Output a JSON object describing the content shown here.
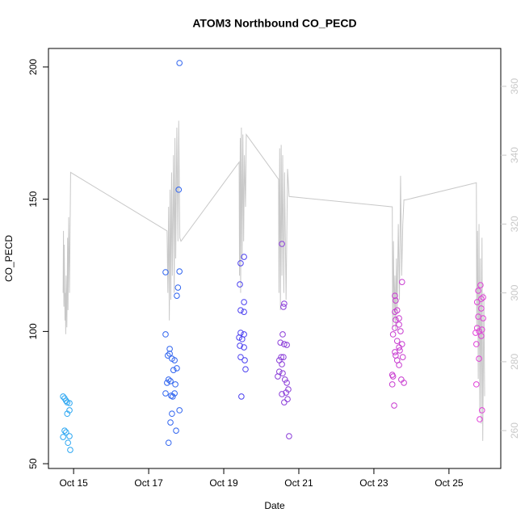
{
  "chart_data": {
    "type": "scatter",
    "title": "ATOM3 Northbound CO_PECD",
    "xlabel": "Date",
    "ylabel": "CO_PECD",
    "xlim": [
      14.33,
      26.38
    ],
    "xticks": [
      {
        "value": 15,
        "label": "Oct 15"
      },
      {
        "value": 17,
        "label": "Oct 17"
      },
      {
        "value": 19,
        "label": "Oct 19"
      },
      {
        "value": 21,
        "label": "Oct 21"
      },
      {
        "value": 23,
        "label": "Oct 23"
      },
      {
        "value": 25,
        "label": "Oct 25"
      }
    ],
    "ylim": [
      48.2,
      207.0
    ],
    "yticks": [
      50,
      100,
      150,
      200
    ],
    "y2lim": [
      249,
      371
    ],
    "y2ticks": [
      260,
      280,
      300,
      320,
      340,
      360
    ],
    "series": [
      {
        "color": "#2aa6f2",
        "x": [
          14.72,
          14.76,
          14.8,
          14.83,
          14.89,
          14.89,
          14.83,
          14.76,
          14.8,
          14.89,
          14.72,
          14.85,
          14.91
        ],
        "values": [
          75.4,
          74.7,
          73.8,
          73.2,
          72.9,
          70.2,
          68.9,
          62.5,
          61.9,
          60.4,
          60.1,
          57.9,
          55.2
        ]
      },
      {
        "color": "#2f64ef",
        "x": [
          17.82,
          17.8,
          17.45,
          17.82,
          17.78,
          17.75,
          17.45,
          17.56,
          17.51,
          17.56,
          17.62,
          17.69,
          17.75,
          17.66,
          17.53,
          17.49,
          17.58,
          17.71,
          17.45,
          17.6,
          17.64,
          17.69,
          17.82,
          17.62,
          17.58,
          17.73,
          17.53
        ],
        "values": [
          201.5,
          153.6,
          122.4,
          122.7,
          116.6,
          113.5,
          98.9,
          93.4,
          90.9,
          91.6,
          89.7,
          89.1,
          86.1,
          85.4,
          81.8,
          80.6,
          81.2,
          80.0,
          76.6,
          75.7,
          75.4,
          76.6,
          70.2,
          68.9,
          65.6,
          62.5,
          57.9
        ]
      },
      {
        "color": "#4a3ff0",
        "x": [
          19.45,
          19.54,
          19.43,
          19.54,
          19.45,
          19.54,
          19.45,
          19.54,
          19.41,
          19.49,
          19.43,
          19.54,
          19.45,
          19.56,
          19.58,
          19.47
        ],
        "values": [
          125.8,
          128.2,
          117.8,
          111.1,
          108.0,
          107.4,
          99.5,
          98.9,
          97.7,
          97.1,
          94.6,
          94.0,
          90.3,
          89.1,
          85.7,
          75.4
        ]
      },
      {
        "color": "#8a3cd8",
        "x": [
          20.55,
          20.61,
          20.59,
          20.57,
          20.51,
          20.61,
          20.68,
          20.53,
          20.59,
          20.48,
          20.55,
          20.48,
          20.57,
          20.44,
          20.63,
          20.68,
          20.72,
          20.66,
          20.55,
          20.7,
          20.61,
          20.74
        ],
        "values": [
          133.1,
          110.5,
          109.3,
          98.9,
          95.8,
          95.2,
          94.9,
          90.3,
          90.3,
          89.1,
          87.6,
          84.8,
          84.2,
          83.0,
          81.8,
          80.6,
          78.1,
          76.9,
          76.3,
          74.4,
          73.2,
          60.4
        ]
      },
      {
        "color": "#c83cd0",
        "x": [
          23.75,
          23.56,
          23.58,
          23.62,
          23.56,
          23.67,
          23.58,
          23.67,
          23.56,
          23.71,
          23.51,
          23.62,
          23.75,
          23.67,
          23.56,
          23.69,
          23.58,
          23.77,
          23.62,
          23.67,
          23.73,
          23.8,
          23.49,
          23.51,
          23.49,
          23.54
        ],
        "values": [
          118.7,
          113.5,
          111.7,
          108.0,
          107.4,
          105.0,
          104.4,
          102.6,
          101.3,
          100.1,
          98.9,
          96.4,
          95.2,
          94.0,
          92.2,
          92.8,
          90.9,
          90.3,
          89.1,
          87.3,
          81.8,
          80.6,
          83.6,
          83.0,
          80.0,
          72.0
        ]
      },
      {
        "color": "#e040d8",
        "x": [
          25.84,
          25.78,
          25.91,
          25.86,
          25.75,
          25.86,
          25.78,
          25.91,
          25.75,
          25.88,
          25.8,
          25.71,
          25.86,
          25.73,
          25.8,
          25.73,
          25.88,
          25.82
        ],
        "values": [
          117.5,
          115.4,
          112.9,
          112.3,
          111.1,
          108.7,
          105.6,
          105.0,
          101.3,
          100.7,
          100.1,
          99.5,
          98.3,
          95.2,
          89.7,
          80.0,
          70.2,
          66.8
        ]
      },
      {
        "type": "line",
        "axis": "y2",
        "color": "#c8c8c8",
        "x": [
          14.72,
          14.73,
          14.74,
          14.75,
          14.77,
          14.78,
          14.79,
          14.8,
          14.82,
          14.84,
          14.85,
          14.87,
          14.89,
          14.92,
          17.49,
          17.51,
          17.53,
          17.55,
          17.57,
          17.59,
          17.61,
          17.63,
          17.66,
          17.68,
          17.7,
          17.72,
          17.75,
          17.78,
          17.8,
          17.83,
          17.86,
          19.41,
          19.42,
          19.44,
          19.45,
          19.47,
          19.49,
          19.51,
          19.53,
          19.55,
          19.58,
          19.6,
          20.46,
          20.47,
          20.49,
          20.51,
          20.53,
          20.55,
          20.57,
          20.6,
          20.62,
          20.66,
          20.7,
          20.74,
          23.49,
          23.5,
          23.52,
          23.54,
          23.56,
          23.58,
          23.6,
          23.62,
          23.65,
          23.68,
          23.71,
          23.74,
          23.77,
          23.8,
          23.84,
          25.73,
          25.74,
          25.76,
          25.78,
          25.8,
          25.82,
          25.84,
          25.86,
          25.88,
          25.9,
          25.93,
          25.95
        ],
        "values": [
          300,
          318,
          296,
          314,
          292,
          300,
          288,
          305,
          290,
          316,
          295,
          322,
          300,
          335,
          318,
          300,
          325,
          292,
          330,
          298,
          335,
          305,
          340,
          300,
          345,
          310,
          348,
          315,
          350,
          316,
          315,
          338,
          305,
          345,
          300,
          348,
          310,
          346,
          315,
          340,
          325,
          346,
          333,
          300,
          342,
          295,
          343,
          305,
          340,
          300,
          335,
          298,
          336,
          328,
          325,
          290,
          315,
          292,
          305,
          289,
          310,
          295,
          320,
          298,
          334,
          305,
          320,
          327,
          327,
          332,
          290,
          318,
          275,
          320,
          265,
          310,
          262,
          316,
          257,
          300,
          270
        ]
      }
    ]
  }
}
